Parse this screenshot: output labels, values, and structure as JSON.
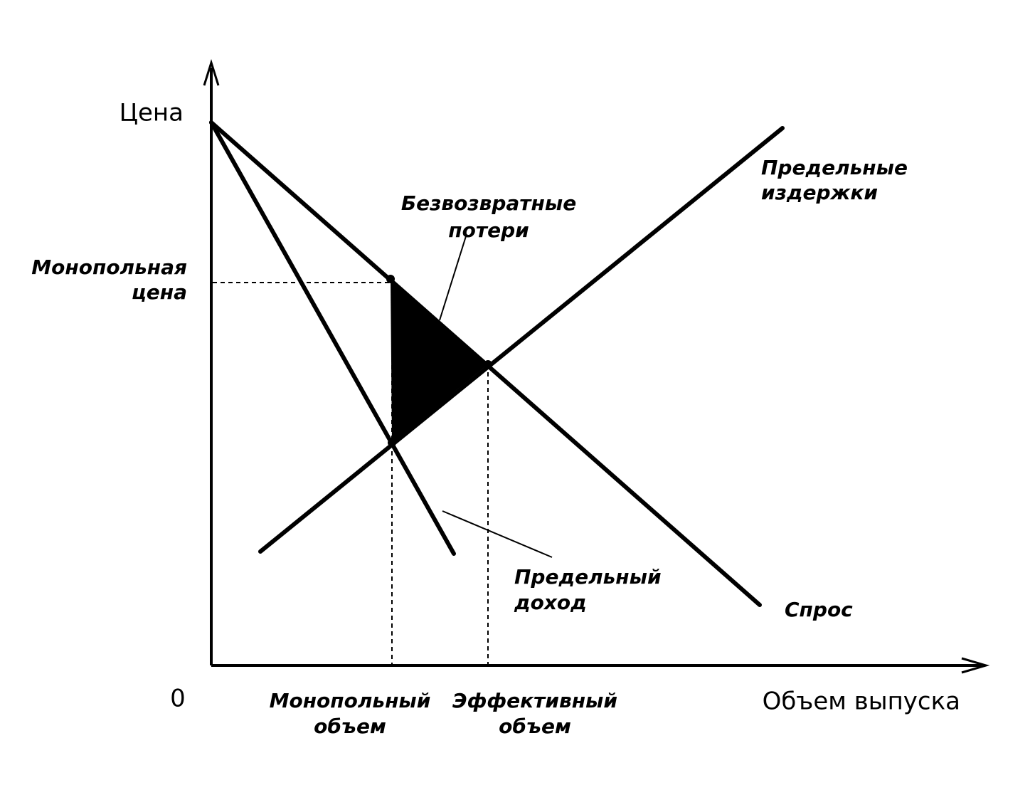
{
  "axes": {
    "y_label": "Цена",
    "origin": "0",
    "x_label": "Объем выпуска"
  },
  "labels": {
    "monopoly_price": [
      "Монопольная",
      "цена"
    ],
    "deadweight_loss": [
      "Безвозвратные",
      "потери"
    ],
    "marginal_cost": [
      "Предельные",
      "издержки"
    ],
    "marginal_revenue": [
      "Предельный",
      "доход"
    ],
    "demand": [
      "Спрос"
    ],
    "monopoly_quantity": [
      "Монопольный",
      "объем"
    ],
    "efficient_quantity": [
      "Эффективный",
      "объем"
    ]
  }
}
